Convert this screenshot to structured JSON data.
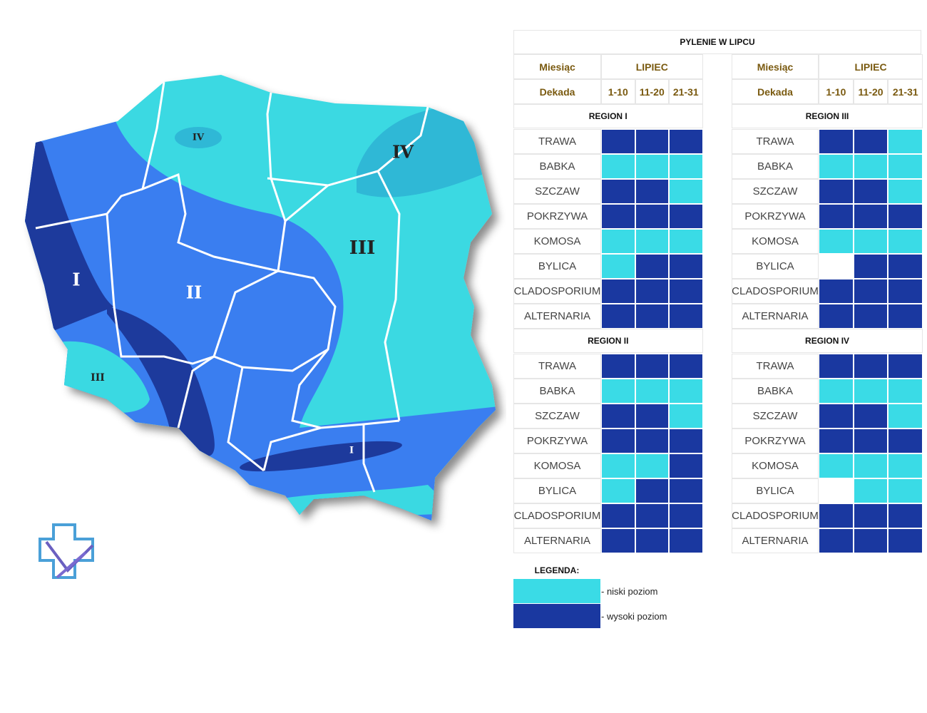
{
  "title": "PYLENIE W LIPCU",
  "month_label": "Miesiąc",
  "month": "LIPIEC",
  "decade_label": "Dekada",
  "decades": [
    "1-10",
    "11-20",
    "21-31"
  ],
  "regions": [
    {
      "name": "REGION I",
      "rows": [
        {
          "plant": "TRAWA",
          "levels": [
            1,
            1,
            1
          ]
        },
        {
          "plant": "BABKA",
          "levels": [
            0,
            0,
            0
          ]
        },
        {
          "plant": "SZCZAW",
          "levels": [
            1,
            1,
            0
          ]
        },
        {
          "plant": "POKRZYWA",
          "levels": [
            1,
            1,
            1
          ]
        },
        {
          "plant": "KOMOSA",
          "levels": [
            0,
            0,
            0
          ]
        },
        {
          "plant": "BYLICA",
          "levels": [
            0,
            1,
            1
          ]
        },
        {
          "plant": "CLADOSPORIUM",
          "levels": [
            1,
            1,
            1
          ]
        },
        {
          "plant": "ALTERNARIA",
          "levels": [
            1,
            1,
            1
          ]
        }
      ]
    },
    {
      "name": "REGION II",
      "rows": [
        {
          "plant": "TRAWA",
          "levels": [
            1,
            1,
            1
          ]
        },
        {
          "plant": "BABKA",
          "levels": [
            0,
            0,
            0
          ]
        },
        {
          "plant": "SZCZAW",
          "levels": [
            1,
            1,
            0
          ]
        },
        {
          "plant": "POKRZYWA",
          "levels": [
            1,
            1,
            1
          ]
        },
        {
          "plant": "KOMOSA",
          "levels": [
            0,
            0,
            1
          ]
        },
        {
          "plant": "BYLICA",
          "levels": [
            0,
            1,
            1
          ]
        },
        {
          "plant": "CLADOSPORIUM",
          "levels": [
            1,
            1,
            1
          ]
        },
        {
          "plant": "ALTERNARIA",
          "levels": [
            1,
            1,
            1
          ]
        }
      ]
    },
    {
      "name": "REGION III",
      "rows": [
        {
          "plant": "TRAWA",
          "levels": [
            1,
            1,
            0
          ]
        },
        {
          "plant": "BABKA",
          "levels": [
            0,
            0,
            0
          ]
        },
        {
          "plant": "SZCZAW",
          "levels": [
            1,
            1,
            0
          ]
        },
        {
          "plant": "POKRZYWA",
          "levels": [
            1,
            1,
            1
          ]
        },
        {
          "plant": "KOMOSA",
          "levels": [
            0,
            0,
            0
          ]
        },
        {
          "plant": "BYLICA",
          "levels": [
            null,
            1,
            1
          ]
        },
        {
          "plant": "CLADOSPORIUM",
          "levels": [
            1,
            1,
            1
          ]
        },
        {
          "plant": "ALTERNARIA",
          "levels": [
            1,
            1,
            1
          ]
        }
      ]
    },
    {
      "name": "REGION IV",
      "rows": [
        {
          "plant": "TRAWA",
          "levels": [
            1,
            1,
            1
          ]
        },
        {
          "plant": "BABKA",
          "levels": [
            0,
            0,
            0
          ]
        },
        {
          "plant": "SZCZAW",
          "levels": [
            1,
            1,
            0
          ]
        },
        {
          "plant": "POKRZYWA",
          "levels": [
            1,
            1,
            1
          ]
        },
        {
          "plant": "KOMOSA",
          "levels": [
            0,
            0,
            0
          ]
        },
        {
          "plant": "BYLICA",
          "levels": [
            null,
            0,
            0
          ]
        },
        {
          "plant": "CLADOSPORIUM",
          "levels": [
            1,
            1,
            1
          ]
        },
        {
          "plant": "ALTERNARIA",
          "levels": [
            1,
            1,
            1
          ]
        }
      ]
    }
  ],
  "legend": {
    "title": "LEGENDA:",
    "items": [
      {
        "label": "- niski poziom",
        "color": "#3adbe6"
      },
      {
        "label": "- wysoki poziom",
        "color": "#1a38a0"
      }
    ]
  },
  "map": {
    "labels": [
      "I",
      "II",
      "III",
      "IV",
      "III",
      "IV",
      "I"
    ]
  }
}
